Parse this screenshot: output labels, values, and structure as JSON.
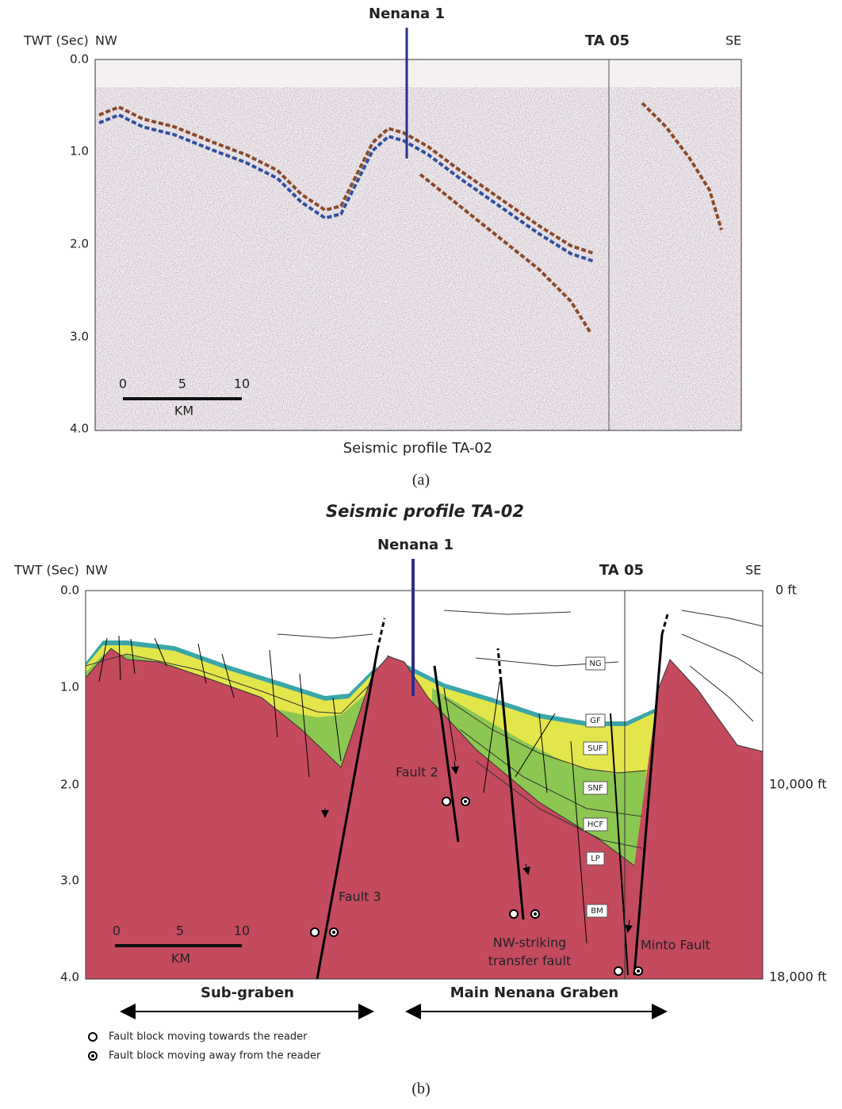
{
  "panel_a": {
    "well_label": "Nenana 1",
    "axis_title": "TWT (Sec)",
    "left_dir": "NW",
    "right_dir": "SE",
    "station_label": "TA 05",
    "yticks": [
      "0.0",
      "1.0",
      "2.0",
      "3.0",
      "4.0"
    ],
    "scale": {
      "ticks": [
        "0",
        "5",
        "10"
      ],
      "unit": "KM"
    },
    "caption": "Seismic profile TA-02",
    "label": "(a)"
  },
  "panel_b": {
    "title": "Seismic profile TA-02",
    "well_label": "Nenana 1",
    "axis_title": "TWT (Sec)",
    "left_dir": "NW",
    "right_dir": "SE",
    "station_label": "TA 05",
    "yticks": [
      "0.0",
      "1.0",
      "2.0",
      "3.0",
      "4.0"
    ],
    "depth_ticks": [
      "0 ft",
      "10,000 ft",
      "18,000 ft"
    ],
    "units": [
      "NG",
      "GF",
      "SUF",
      "SNF",
      "HCF",
      "LP",
      "BM"
    ],
    "faults": [
      [
        "Fault 2"
      ],
      [
        "Fault 3"
      ],
      [
        "NW-striking",
        "transfer fault"
      ],
      [
        "Minto Fault"
      ]
    ],
    "scale": {
      "ticks": [
        "0",
        "5",
        "10"
      ],
      "unit": "KM"
    },
    "regions": [
      "Sub-graben",
      "Main Nenana Graben"
    ],
    "legend": [
      "Fault block moving towards the reader",
      "Fault block moving away from the reader"
    ],
    "label": "(b)"
  }
}
